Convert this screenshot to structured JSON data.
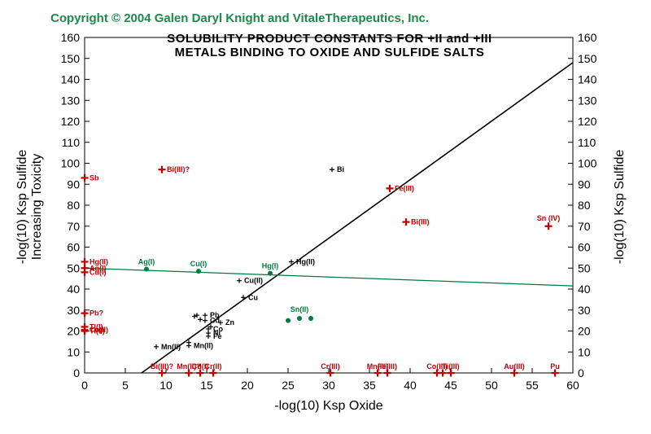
{
  "copyright": "Copyright © 2004 Galen Daryl Knight and VitaleTherapeutics, Inc.",
  "colors": {
    "red": "#c00000",
    "green": "#007a3d",
    "black": "#000000",
    "copyright_green": "#1a8a4a"
  },
  "chart_data": {
    "type": "scatter",
    "title_lines": [
      "SOLUBILITY  PRODUCT  CONSTANTS  FOR +II and +III",
      "METALS  BINDING  TO  OXIDE  AND  SULFIDE  SALTS"
    ],
    "xlabel": "-log(10) Ksp Oxide",
    "ylabel_left_lines": [
      "-log(10) Ksp Sulfide",
      "Increasing  Toxicity"
    ],
    "ylabel_right": "-log(10) Ksp Sulfide",
    "xlim": [
      0,
      60
    ],
    "ylim": [
      0,
      160
    ],
    "x_ticks": [
      "0",
      "5",
      "10",
      "15",
      "20",
      "25",
      "30",
      "35",
      "40",
      "45",
      "50",
      "55",
      "60"
    ],
    "y_ticks": [
      "0",
      "10",
      "20",
      "30",
      "40",
      "50",
      "60",
      "70",
      "80",
      "90",
      "100",
      "110",
      "120",
      "130",
      "140",
      "150",
      "160"
    ],
    "lines": [
      {
        "color": "black",
        "x1": 7,
        "y1": 0,
        "x2": 60,
        "y2": 148
      },
      {
        "color": "green",
        "x1": 0,
        "y1": 50,
        "x2": 60,
        "y2": 41.5
      }
    ],
    "points": [
      {
        "x": 0,
        "y": 93,
        "marker": "cross",
        "color": "red",
        "label": "Sb"
      },
      {
        "x": 9.5,
        "y": 97,
        "marker": "cross",
        "color": "red",
        "label": "Bi(III)?"
      },
      {
        "x": 0,
        "y": 53,
        "marker": "cross",
        "color": "red",
        "label": "Hg(II)"
      },
      {
        "x": 0,
        "y": 50,
        "marker": "cross",
        "color": "red",
        "label": "Ag(I)"
      },
      {
        "x": 0,
        "y": 48,
        "marker": "cross",
        "color": "red",
        "label": "Cu(I)"
      },
      {
        "x": 0,
        "y": 28.5,
        "marker": "cross",
        "color": "red",
        "label": "Pb?"
      },
      {
        "x": 0,
        "y": 22,
        "marker": "cross",
        "color": "red",
        "label": "Tl(I)"
      },
      {
        "x": 0,
        "y": 20.5,
        "marker": "cross",
        "color": "red",
        "label": "Co(II)"
      },
      {
        "x": 0,
        "y": 20,
        "marker": "cross",
        "color": "red",
        "label": "Ti(II)"
      },
      {
        "x": 37.5,
        "y": 88,
        "marker": "cross",
        "color": "red",
        "label": "Fe(III)"
      },
      {
        "x": 39.5,
        "y": 72,
        "marker": "cross",
        "color": "red",
        "label": "Bi(III)"
      },
      {
        "x": 57,
        "y": 70,
        "marker": "cross",
        "color": "red",
        "label": "Sn (IV)"
      },
      {
        "x": 9.5,
        "y": 0,
        "marker": "cross",
        "color": "red",
        "label": "Bi(III)?"
      },
      {
        "x": 12.8,
        "y": 0,
        "marker": "cross",
        "color": "red",
        "label": "Mn(II)?"
      },
      {
        "x": 14.2,
        "y": 0,
        "marker": "cross",
        "color": "red",
        "label": "Cd(I)"
      },
      {
        "x": 15.8,
        "y": 0,
        "marker": "cross",
        "color": "red",
        "label": "Cr(II)"
      },
      {
        "x": 30.2,
        "y": 0,
        "marker": "cross",
        "color": "red",
        "label": "Cr(III)"
      },
      {
        "x": 36,
        "y": 0,
        "marker": "cross",
        "color": "red",
        "label": "Mn(III)"
      },
      {
        "x": 37.2,
        "y": 0,
        "marker": "cross",
        "color": "red",
        "label": "Fe(III)"
      },
      {
        "x": 43.3,
        "y": 0,
        "marker": "cross",
        "color": "red",
        "label": "Co(III)"
      },
      {
        "x": 44,
        "y": 0,
        "marker": "cross",
        "color": "red",
        "label": ""
      },
      {
        "x": 45,
        "y": 0,
        "marker": "cross",
        "color": "red",
        "label": "Ti(III)"
      },
      {
        "x": 52.8,
        "y": 0,
        "marker": "cross",
        "color": "red",
        "label": "Au(III)"
      },
      {
        "x": 57.8,
        "y": 0,
        "marker": "cross",
        "color": "red",
        "label": "Pu"
      },
      {
        "x": 7.6,
        "y": 49.5,
        "marker": "dot",
        "color": "green",
        "label": "Ag(I)"
      },
      {
        "x": 14,
        "y": 48.5,
        "marker": "dot",
        "color": "green",
        "label": "Cu(I)"
      },
      {
        "x": 22.8,
        "y": 47.5,
        "marker": "dot",
        "color": "green",
        "label": "Hg(I)"
      },
      {
        "x": 25,
        "y": 25,
        "marker": "dot",
        "color": "green",
        "label": ""
      },
      {
        "x": 26.4,
        "y": 26,
        "marker": "dot",
        "color": "green",
        "label": "Sn(II)"
      },
      {
        "x": 27.8,
        "y": 26,
        "marker": "dot",
        "color": "green",
        "label": ""
      },
      {
        "x": 30.4,
        "y": 97,
        "marker": "cross",
        "color": "black",
        "label": "Bi"
      },
      {
        "x": 25.4,
        "y": 53,
        "marker": "cross",
        "color": "black",
        "label": "Hg(II)"
      },
      {
        "x": 19,
        "y": 44,
        "marker": "cross",
        "color": "black",
        "label": "Cu(II)"
      },
      {
        "x": 19.5,
        "y": 36,
        "marker": "cross",
        "color": "black",
        "label": "Cu"
      },
      {
        "x": 8.8,
        "y": 12.5,
        "marker": "cross",
        "color": "black",
        "label": "Mn(II)"
      },
      {
        "x": 12.8,
        "y": 13,
        "marker": "cross",
        "color": "black",
        "label": "Mn(II)"
      },
      {
        "x": 12.8,
        "y": 14.5,
        "marker": "cross",
        "color": "black",
        "label": ""
      },
      {
        "x": 13.5,
        "y": 27,
        "marker": "cross",
        "color": "black",
        "label": ""
      },
      {
        "x": 13.8,
        "y": 27.5,
        "marker": "cross",
        "color": "black",
        "label": ""
      },
      {
        "x": 14.8,
        "y": 27.5,
        "marker": "cross",
        "color": "black",
        "label": "Pb"
      },
      {
        "x": 14.2,
        "y": 25.5,
        "marker": "cross",
        "color": "black",
        "label": ""
      },
      {
        "x": 14.8,
        "y": 25,
        "marker": "cross",
        "color": "black",
        "label": "Cd"
      },
      {
        "x": 16.7,
        "y": 24,
        "marker": "cross",
        "color": "black",
        "label": "Zn"
      },
      {
        "x": 15.5,
        "y": 22,
        "marker": "cross",
        "color": "black",
        "label": ""
      },
      {
        "x": 15.2,
        "y": 21,
        "marker": "cross",
        "color": "black",
        "label": "Co"
      },
      {
        "x": 15.2,
        "y": 19,
        "marker": "cross",
        "color": "black",
        "label": "Ni"
      },
      {
        "x": 15.2,
        "y": 17.5,
        "marker": "cross",
        "color": "black",
        "label": "Fe"
      }
    ]
  }
}
